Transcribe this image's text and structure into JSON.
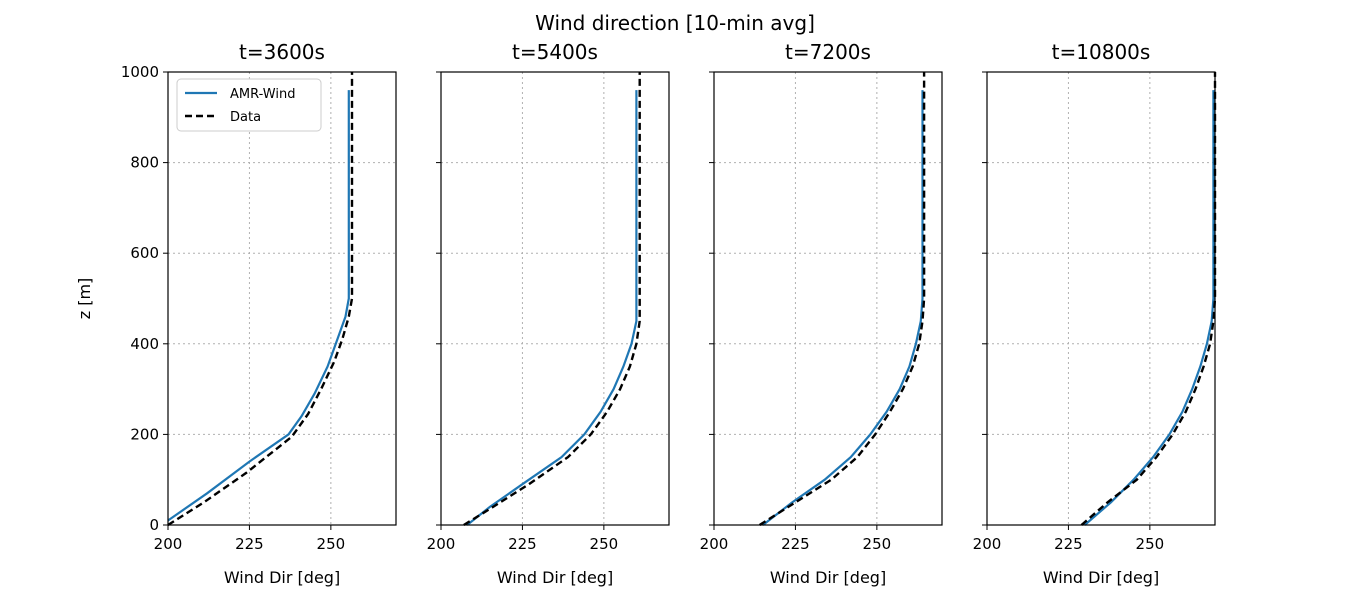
{
  "figure": {
    "title": "Wind direction [10-min avg]"
  },
  "chart_data": [
    {
      "type": "line",
      "title": "t=3600s",
      "xlabel": "Wind Dir [deg]",
      "ylabel": "z [m]",
      "xlim": [
        200,
        270
      ],
      "ylim": [
        0,
        1000
      ],
      "xticks": [
        200,
        225,
        250
      ],
      "yticks": [
        0,
        200,
        400,
        600,
        800,
        1000
      ],
      "grid": true,
      "legend": {
        "position": "upper-left",
        "entries": [
          "AMR-Wind",
          "Data"
        ]
      },
      "series": [
        {
          "name": "AMR-Wind",
          "color": "#1f77b4",
          "style": "solid",
          "x": [
            200,
            212,
            225,
            237,
            241,
            245,
            249,
            252,
            254.5,
            255.5,
            255.5
          ],
          "y": [
            10,
            70,
            140,
            200,
            240,
            290,
            350,
            410,
            460,
            500,
            960
          ]
        },
        {
          "name": "Data",
          "color": "#000000",
          "style": "dashed",
          "x": [
            200,
            211,
            224,
            238,
            243,
            247,
            251,
            253.5,
            255.5,
            256.5,
            256.5
          ],
          "y": [
            0,
            50,
            115,
            195,
            245,
            300,
            360,
            410,
            460,
            500,
            1000
          ]
        }
      ]
    },
    {
      "type": "line",
      "title": "t=5400s",
      "xlabel": "Wind Dir [deg]",
      "ylabel": "",
      "xlim": [
        200,
        270
      ],
      "ylim": [
        0,
        1000
      ],
      "xticks": [
        200,
        225,
        250
      ],
      "yticks": [
        0,
        200,
        400,
        600,
        800,
        1000
      ],
      "grid": true,
      "series": [
        {
          "name": "AMR-Wind",
          "color": "#1f77b4",
          "style": "solid",
          "x": [
            208,
            215,
            225,
            237,
            244,
            249,
            253,
            256,
            258.5,
            260,
            260,
            260
          ],
          "y": [
            0,
            40,
            90,
            150,
            200,
            250,
            300,
            350,
            400,
            450,
            500,
            960
          ]
        },
        {
          "name": "Data",
          "color": "#000000",
          "style": "dashed",
          "x": [
            207,
            216,
            227,
            239,
            246,
            251,
            255,
            258,
            260,
            261,
            261,
            261
          ],
          "y": [
            0,
            40,
            90,
            150,
            200,
            250,
            300,
            350,
            400,
            450,
            500,
            1000
          ]
        }
      ]
    },
    {
      "type": "line",
      "title": "t=7200s",
      "xlabel": "Wind Dir [deg]",
      "ylabel": "",
      "xlim": [
        200,
        270
      ],
      "ylim": [
        0,
        1000
      ],
      "xticks": [
        200,
        225,
        250
      ],
      "yticks": [
        0,
        200,
        400,
        600,
        800,
        1000
      ],
      "grid": true,
      "series": [
        {
          "name": "AMR-Wind",
          "color": "#1f77b4",
          "style": "solid",
          "x": [
            215,
            224,
            234,
            242,
            248,
            253,
            257,
            260,
            262,
            263.5,
            264,
            264
          ],
          "y": [
            0,
            50,
            100,
            150,
            200,
            250,
            300,
            350,
            400,
            450,
            500,
            960
          ]
        },
        {
          "name": "Data",
          "color": "#000000",
          "style": "dashed",
          "x": [
            214,
            225,
            236,
            244,
            249.5,
            254,
            258,
            261,
            263,
            264,
            264.5,
            264.5
          ],
          "y": [
            0,
            50,
            100,
            150,
            200,
            250,
            300,
            350,
            400,
            450,
            500,
            1000
          ]
        }
      ]
    },
    {
      "type": "line",
      "title": "t=10800s",
      "xlabel": "Wind Dir [deg]",
      "ylabel": "",
      "xlim": [
        200,
        270
      ],
      "ylim": [
        0,
        1000
      ],
      "xticks": [
        200,
        225,
        250
      ],
      "yticks": [
        0,
        200,
        400,
        600,
        800,
        1000
      ],
      "grid": true,
      "series": [
        {
          "name": "AMR-Wind",
          "color": "#1f77b4",
          "style": "solid",
          "x": [
            230,
            238,
            245,
            251,
            256,
            260,
            263,
            265.5,
            267.5,
            269,
            269.5,
            269.5
          ],
          "y": [
            0,
            50,
            100,
            150,
            200,
            250,
            300,
            350,
            400,
            450,
            500,
            960
          ]
        },
        {
          "name": "Data",
          "color": "#000000",
          "style": "dashed",
          "x": [
            229,
            237,
            246,
            252,
            257,
            261,
            264,
            266.5,
            268.5,
            269.5,
            270,
            270
          ],
          "y": [
            0,
            50,
            100,
            150,
            200,
            250,
            300,
            350,
            400,
            450,
            500,
            1000
          ]
        }
      ]
    }
  ]
}
